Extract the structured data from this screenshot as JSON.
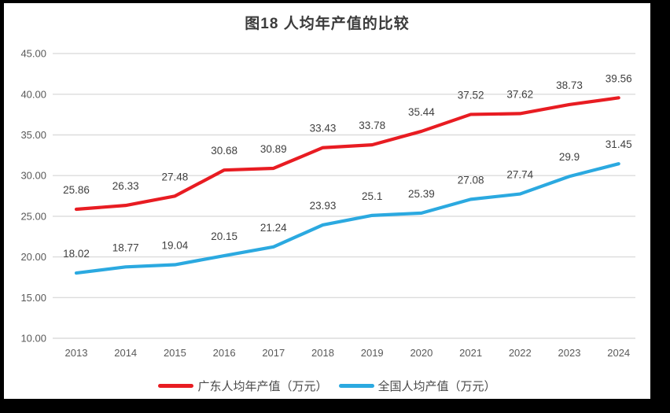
{
  "frame": {
    "background": "#000000",
    "panel_background": "#ffffff"
  },
  "chart_data": {
    "type": "line",
    "title": "图18 人均年产值的比较",
    "x": [
      "2013",
      "2014",
      "2015",
      "2016",
      "2017",
      "2018",
      "2019",
      "2020",
      "2021",
      "2022",
      "2023",
      "2024"
    ],
    "series": [
      {
        "name": "广东人均年产值（万元）",
        "color": "#e81c22",
        "values": [
          25.86,
          26.33,
          27.48,
          30.68,
          30.89,
          33.43,
          33.78,
          35.44,
          37.52,
          37.62,
          38.73,
          39.56
        ]
      },
      {
        "name": "全国人均产值（万元）",
        "color": "#2ba9e0",
        "values": [
          18.02,
          18.77,
          19.04,
          20.15,
          21.24,
          23.93,
          25.1,
          25.39,
          27.08,
          27.74,
          29.9,
          31.45
        ]
      }
    ],
    "ylim": [
      10,
      45
    ],
    "yticks": [
      {
        "v": 10,
        "label": "10.00"
      },
      {
        "v": 15,
        "label": "15.00"
      },
      {
        "v": 20,
        "label": "20.00"
      },
      {
        "v": 25,
        "label": "25.00"
      },
      {
        "v": 30,
        "label": "30.00"
      },
      {
        "v": 35,
        "label": "35.00"
      },
      {
        "v": 40,
        "label": "40.00"
      },
      {
        "v": 45,
        "label": "45.00"
      }
    ],
    "grid": true,
    "grid_color": "#dcdcdc",
    "axis_text_color": "#595959",
    "data_label_color": "#404040",
    "data_labels": true,
    "legend_position": "bottom",
    "xlabel": "",
    "ylabel": ""
  }
}
